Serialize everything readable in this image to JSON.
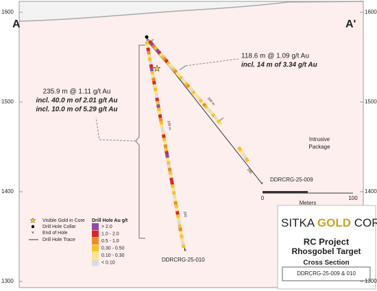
{
  "sections": {
    "left": "A",
    "right": "A'"
  },
  "elevations": [
    1600,
    1500,
    1400,
    1300
  ],
  "intercepts": [
    {
      "lines": [
        "118.6 m @ 1.09 g/t Au",
        "incl. 14 m of 3.34 g/t Au"
      ]
    },
    {
      "lines": [
        "235.9 m @ 1.11 g/t Au",
        "incl. 40.0 m of 2.01 g/t Au",
        "incl. 10.0 m of 5.29 g/t Au"
      ]
    }
  ],
  "holes": [
    {
      "name": "DDRCRG-25-009",
      "depth_labels": [
        "100 m",
        "200"
      ]
    },
    {
      "name": "DDRCRG-25-010",
      "depth_labels": [
        "100 m",
        "200"
      ]
    }
  ],
  "rock_unit": [
    "Intrusive",
    "Package"
  ],
  "scale": {
    "ticks": [
      0,
      100
    ],
    "unit": "Meters"
  },
  "legend": {
    "title": "Drill Hole Au g/t",
    "symbols": [
      "Visible Gold in Core",
      "Drill Hole Collar",
      "End of Hole",
      "Drill Hole Trace"
    ],
    "grades": [
      {
        "label": "> 2.0",
        "color": "#8b4ea6"
      },
      {
        "label": "1.0 - 2.0",
        "color": "#d9262c"
      },
      {
        "label": "0.5 - 1.0",
        "color": "#f08a2a"
      },
      {
        "label": "0.30 - 0.50",
        "color": "#f5c230"
      },
      {
        "label": "0.10 - 0.30",
        "color": "#fbe58c"
      },
      {
        "label": "< 0.10",
        "color": "#dcdcdc"
      }
    ]
  },
  "logo": {
    "left": "SITKA",
    "middle": "GOLD",
    "right": "CORP"
  },
  "title_block": {
    "lines": [
      "RC Project",
      "Rhosgobel Target",
      "Cross Section"
    ],
    "subtitle": "DDRCRG-25-009 & 010"
  }
}
